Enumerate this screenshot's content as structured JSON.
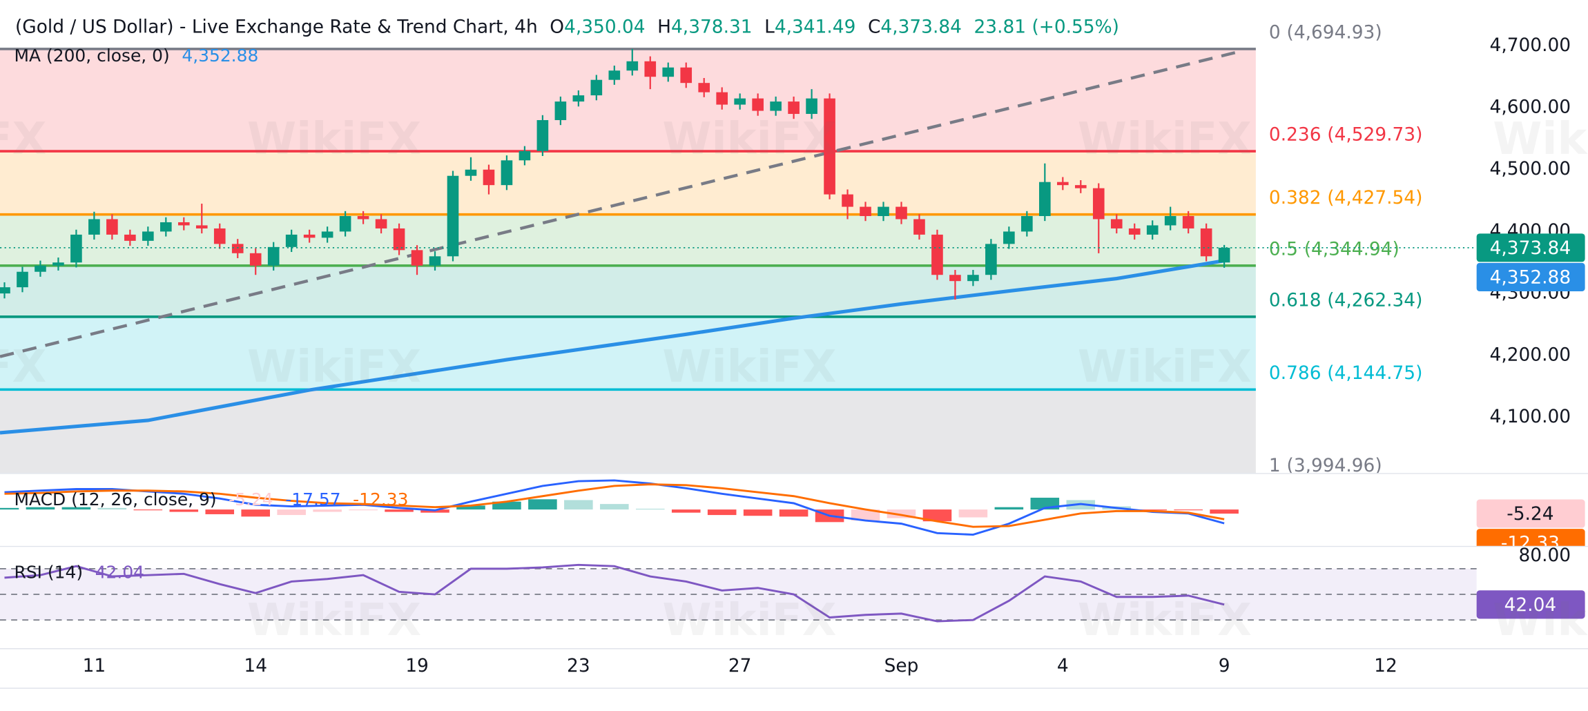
{
  "header": {
    "title": "(Gold / US Dollar) - Live Exchange Rate & Trend Chart, 4h",
    "ohlc": [
      {
        "label": "O",
        "value": "4,350.04"
      },
      {
        "label": "H",
        "value": "4,378.31"
      },
      {
        "label": "L",
        "value": "4,341.49"
      },
      {
        "label": "C",
        "value": "4,373.84"
      }
    ],
    "change": "23.81 (+0.55%)"
  },
  "watermark": "WikiFX",
  "chart_data": [
    {
      "type": "candlestick",
      "x": [
        0,
        1,
        2,
        3,
        4,
        5,
        6,
        7,
        8,
        9,
        10,
        11,
        12,
        13,
        14,
        15,
        16,
        17,
        18,
        19,
        20,
        21,
        22,
        23,
        24,
        25,
        26,
        27,
        28,
        29,
        30,
        31,
        32,
        33,
        34,
        35,
        36,
        37,
        38,
        39,
        40,
        41,
        42,
        43,
        44,
        45,
        46,
        47,
        48,
        49,
        50,
        51,
        52,
        53,
        54,
        55,
        56,
        57,
        58,
        59,
        60,
        61,
        62,
        63,
        64,
        65,
        66,
        67,
        68
      ],
      "open": [
        4300,
        4310,
        4335,
        4345,
        4350,
        4395,
        4420,
        4395,
        4385,
        4400,
        4415,
        4410,
        4405,
        4380,
        4365,
        4345,
        4375,
        4395,
        4390,
        4400,
        4425,
        4420,
        4405,
        4370,
        4345,
        4360,
        4490,
        4500,
        4475,
        4515,
        4530,
        4580,
        4610,
        4620,
        4645,
        4660,
        4675,
        4650,
        4665,
        4640,
        4625,
        4605,
        4615,
        4595,
        4610,
        4590,
        4615,
        4460,
        4440,
        4425,
        4440,
        4420,
        4395,
        4330,
        4320,
        4330,
        4380,
        4400,
        4425,
        4480,
        4475,
        4470,
        4420,
        4405,
        4395,
        4410,
        4425,
        4405,
        4350.04
      ],
      "high": [
        4318,
        4343,
        4353,
        4358,
        4403,
        4432,
        4428,
        4403,
        4408,
        4423,
        4423,
        4445,
        4413,
        4388,
        4373,
        4383,
        4403,
        4403,
        4408,
        4433,
        4433,
        4428,
        4413,
        4378,
        4368,
        4498,
        4520,
        4508,
        4523,
        4538,
        4588,
        4618,
        4628,
        4653,
        4668,
        4695,
        4683,
        4673,
        4673,
        4648,
        4633,
        4623,
        4623,
        4618,
        4618,
        4630,
        4623,
        4468,
        4448,
        4448,
        4448,
        4428,
        4403,
        4338,
        4338,
        4388,
        4408,
        4433,
        4510,
        4488,
        4483,
        4478,
        4428,
        4413,
        4418,
        4440,
        4433,
        4413,
        4378.31
      ],
      "low": [
        4292,
        4302,
        4327,
        4337,
        4342,
        4387,
        4387,
        4377,
        4377,
        4392,
        4402,
        4397,
        4372,
        4357,
        4330,
        4337,
        4367,
        4382,
        4382,
        4392,
        4412,
        4397,
        4362,
        4330,
        4337,
        4352,
        4482,
        4460,
        4467,
        4507,
        4522,
        4572,
        4602,
        4612,
        4637,
        4652,
        4630,
        4642,
        4632,
        4617,
        4597,
        4597,
        4587,
        4587,
        4582,
        4582,
        4452,
        4420,
        4417,
        4417,
        4412,
        4387,
        4322,
        4290,
        4312,
        4322,
        4372,
        4392,
        4417,
        4467,
        4462,
        4365,
        4397,
        4387,
        4387,
        4402,
        4397,
        4352,
        4341.49
      ],
      "close": [
        4310,
        4335,
        4345,
        4350,
        4395,
        4420,
        4395,
        4385,
        4400,
        4415,
        4410,
        4405,
        4380,
        4365,
        4345,
        4375,
        4395,
        4390,
        4400,
        4425,
        4420,
        4405,
        4370,
        4345,
        4360,
        4490,
        4500,
        4475,
        4515,
        4530,
        4580,
        4610,
        4620,
        4645,
        4660,
        4675,
        4650,
        4665,
        4640,
        4625,
        4605,
        4615,
        4595,
        4610,
        4590,
        4615,
        4460,
        4440,
        4425,
        4440,
        4420,
        4395,
        4330,
        4320,
        4330,
        4380,
        4400,
        4425,
        4480,
        4475,
        4470,
        4420,
        4405,
        4395,
        4410,
        4425,
        4405,
        4360,
        4373.84
      ],
      "up_color": "#089981",
      "down_color": "#f23645",
      "last_price_label": "4,373.84",
      "xlim": [
        -0.25,
        81.9
      ],
      "xticks": [
        {
          "value": 5,
          "label": "11"
        },
        {
          "value": 14,
          "label": "14"
        },
        {
          "value": 23,
          "label": "19"
        },
        {
          "value": 32,
          "label": "23"
        },
        {
          "value": 41,
          "label": "27"
        },
        {
          "value": 50,
          "label": "Sep"
        },
        {
          "value": 59,
          "label": "4"
        },
        {
          "value": 68,
          "label": "9"
        },
        {
          "value": 77,
          "label": "12"
        }
      ],
      "ylim": [
        4010,
        4774
      ],
      "yticks": [
        {
          "value": 4100,
          "label": "4,100.00"
        },
        {
          "value": 4200,
          "label": "4,200.00"
        },
        {
          "value": 4300,
          "label": "4,300.00"
        },
        {
          "value": 4400,
          "label": "4,400.00"
        },
        {
          "value": 4500,
          "label": "4,500.00"
        },
        {
          "value": 4600,
          "label": "4,600.00"
        },
        {
          "value": 4700,
          "label": "4,700.00"
        }
      ],
      "grid": false,
      "ma": {
        "name": "MA (200, close, 0)",
        "value_label": "4,352.88",
        "color": "#2a8fe6",
        "x": [
          -0.25,
          8,
          17,
          28,
          38,
          44,
          50,
          56,
          62,
          68
        ],
        "values": [
          4075,
          4095,
          4144,
          4193,
          4234,
          4260,
          4283,
          4304,
          4324,
          4352.88
        ]
      },
      "trendline": {
        "color": "#787b86",
        "x": [
          -0.25,
          68.6
        ],
        "y": [
          4198,
          4689
        ]
      },
      "fib": [
        {
          "level": "0",
          "value": 4694.93,
          "label": "(4,694.93)",
          "color": "#787b86"
        },
        {
          "level": "0.236",
          "value": 4529.73,
          "label": "(4,529.73)",
          "color": "#f23645"
        },
        {
          "level": "0.382",
          "value": 4427.54,
          "label": "(4,427.54)",
          "color": "#ff9800"
        },
        {
          "level": "0.5",
          "value": 4344.94,
          "label": "(4,344.94)",
          "color": "#4caf50"
        },
        {
          "level": "0.618",
          "value": 4262.34,
          "label": "(4,262.34)",
          "color": "#089981"
        },
        {
          "level": "0.786",
          "value": 4144.75,
          "label": "(4,144.75)",
          "color": "#00bcd4"
        },
        {
          "level": "1",
          "value": 3994.96,
          "label": "(3,994.96)",
          "color": "#787b86"
        }
      ]
    },
    {
      "type": "macd",
      "name": "MACD (12, 26, close, 9)",
      "x": [
        0,
        2,
        4,
        6,
        8,
        10,
        12,
        14,
        16,
        18,
        20,
        22,
        24,
        26,
        28,
        30,
        32,
        34,
        36,
        38,
        40,
        42,
        44,
        46,
        48,
        50,
        52,
        54,
        56,
        58,
        60,
        62,
        64,
        66,
        68
      ],
      "histogram": {
        "values": [
          2,
          3,
          3,
          2,
          -1,
          -3,
          -6,
          -9,
          -7,
          -3,
          -1,
          -3,
          -4,
          5,
          10,
          13,
          12,
          7,
          1,
          -4,
          -7,
          -8,
          -9,
          -16,
          -14,
          -11,
          -15,
          -10,
          3,
          15,
          12,
          4,
          -1,
          -1,
          -5.24
        ],
        "value_label": "-5.24",
        "colors": {
          "pos_up": "#26a69a",
          "pos_down": "#b2dfdb",
          "neg_down": "#ff5252",
          "neg_up": "#ffcdd2"
        }
      },
      "macd": {
        "values": [
          22,
          24,
          26,
          26,
          23,
          20,
          14,
          6,
          4,
          5,
          6,
          2,
          -1,
          10,
          20,
          30,
          36,
          37,
          33,
          27,
          20,
          14,
          8,
          -8,
          -14,
          -18,
          -30,
          -32,
          -18,
          2,
          7,
          2,
          -3,
          -5,
          -17.57
        ],
        "value_label": "-17.57",
        "color": "#2962ff"
      },
      "signal": {
        "values": [
          20,
          21,
          23,
          24,
          24,
          23,
          20,
          15,
          11,
          8,
          7,
          5,
          3,
          5,
          10,
          17,
          24,
          30,
          32,
          31,
          27,
          22,
          17,
          8,
          0,
          -7,
          -15,
          -22,
          -21,
          -13,
          -5,
          -2,
          -2,
          -4,
          -12.33
        ],
        "value_label": "-12.33",
        "color": "#ff6d00"
      },
      "ylim": [
        -45,
        40
      ]
    },
    {
      "type": "rsi",
      "name": "RSI (14)",
      "x": [
        0,
        2,
        4,
        6,
        8,
        10,
        12,
        14,
        16,
        18,
        20,
        22,
        24,
        26,
        28,
        30,
        32,
        34,
        36,
        38,
        40,
        42,
        44,
        46,
        48,
        50,
        52,
        54,
        56,
        58,
        60,
        62,
        64,
        66,
        68
      ],
      "values": [
        63,
        65,
        72,
        64,
        65,
        66,
        58,
        51,
        60,
        62,
        65,
        52,
        50,
        70,
        70,
        71,
        73,
        72,
        64,
        60,
        53,
        55,
        50,
        32,
        34,
        35,
        29,
        30,
        45,
        64,
        60,
        48,
        48,
        49,
        42.04
      ],
      "value_label": "42.04",
      "color": "#7e57c2",
      "ylim": [
        8,
        87
      ],
      "yticks": [
        {
          "value": 80,
          "label": "80.00"
        }
      ],
      "bands": [
        70,
        50,
        30
      ]
    }
  ]
}
